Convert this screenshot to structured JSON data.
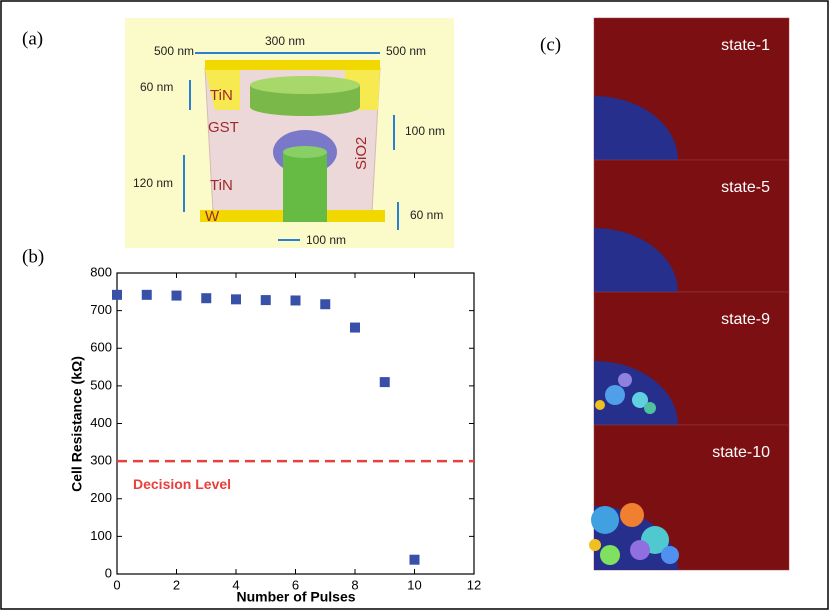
{
  "panels": {
    "a": "(a)",
    "b": "(b)",
    "c": "(c)"
  },
  "device": {
    "top_left": "500 nm",
    "top_mid": "300 nm",
    "top_right": "500 nm",
    "tin_top_thick": "60 nm",
    "tin_top": "TiN",
    "gst": "GST",
    "gst_thick": "100 nm",
    "sio2": "SiO2",
    "heater_height": "120 nm",
    "tin_heater": "TiN",
    "w": "W",
    "w_thick": "60 nm",
    "heater_width": "100 nm"
  },
  "states": [
    "state-1",
    "state-5",
    "state-9",
    "state-10"
  ],
  "chart_data": {
    "type": "scatter",
    "x": [
      0,
      1,
      2,
      3,
      4,
      5,
      6,
      7,
      8,
      9,
      10
    ],
    "values": [
      742,
      742,
      740,
      733,
      730,
      728,
      727,
      717,
      655,
      510,
      38
    ],
    "color": "#3850a8",
    "xlabel": "Number of Pulses",
    "ylabel": "Cell Resistance (kΩ)",
    "xlim": [
      0,
      12
    ],
    "ylim": [
      0,
      800
    ],
    "xticks": [
      0,
      2,
      4,
      6,
      8,
      10,
      12
    ],
    "yticks": [
      0,
      100,
      200,
      300,
      400,
      500,
      600,
      700,
      800
    ],
    "reference_line": {
      "value": 300,
      "label": "Decision Level",
      "color": "#e8403a"
    }
  }
}
